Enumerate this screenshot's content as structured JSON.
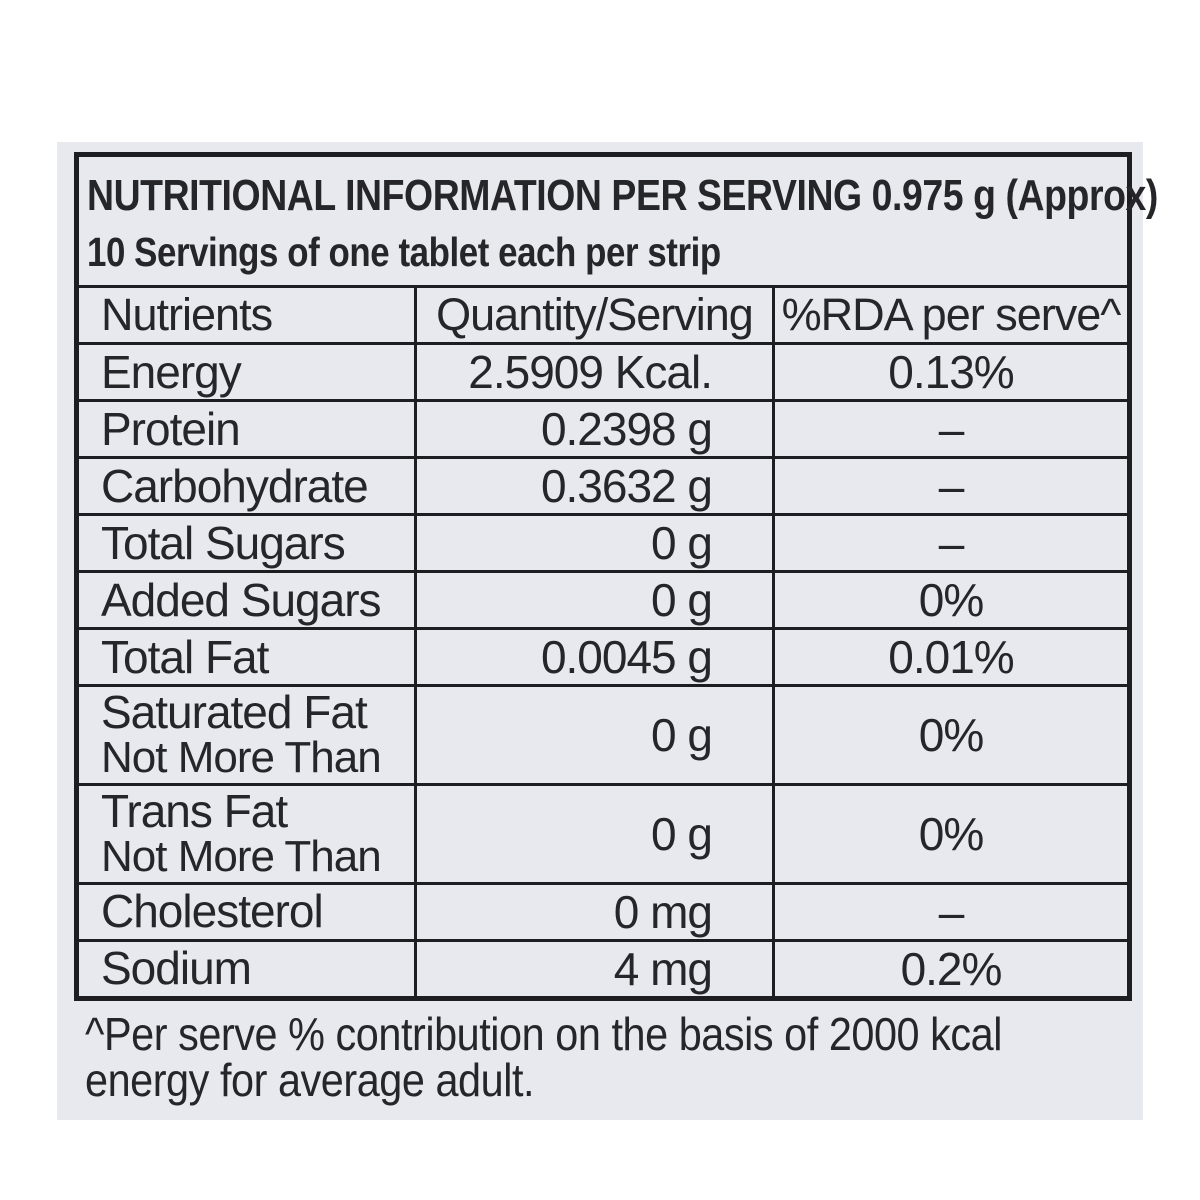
{
  "label": {
    "title": "NUTRITIONAL INFORMATION PER SERVING 0.975 g (Approx)",
    "subtitle": "10 Servings of one tablet each per strip",
    "table": {
      "headers": {
        "nutrient": "Nutrients",
        "quantity": "Quantity/Serving",
        "rda": "%RDA per serve^"
      },
      "rows": [
        {
          "nutrient": "Energy",
          "quantity": "2.5909 Kcal.",
          "rda": "0.13%"
        },
        {
          "nutrient": "Protein",
          "quantity": "0.2398 g",
          "rda": "–"
        },
        {
          "nutrient": "Carbohydrate",
          "quantity": "0.3632 g",
          "rda": "–"
        },
        {
          "nutrient": "Total Sugars",
          "quantity": "0 g",
          "rda": "–"
        },
        {
          "nutrient": "Added Sugars",
          "quantity": "0 g",
          "rda": "0%"
        },
        {
          "nutrient": "Total Fat",
          "quantity": "0.0045 g",
          "rda": "0.01%"
        },
        {
          "nutrient": "Saturated Fat",
          "sub": "Not More Than",
          "quantity": "0 g",
          "rda": "0%"
        },
        {
          "nutrient": "Trans Fat",
          "sub": "Not More Than",
          "quantity": "0 g",
          "rda": "0%"
        },
        {
          "nutrient": "Cholesterol",
          "quantity": "0 mg",
          "rda": "–"
        },
        {
          "nutrient": "Sodium",
          "quantity": "4 mg",
          "rda": "0.2%"
        }
      ]
    },
    "footnote": {
      "line1": "^Per serve % contribution on the basis of 2000 kcal",
      "line2": "energy for average adult."
    },
    "colors": {
      "page_bg": "#ffffff",
      "label_bg": "#e7e9ee",
      "ink": "#26262a",
      "border": "#1d1d22"
    }
  }
}
